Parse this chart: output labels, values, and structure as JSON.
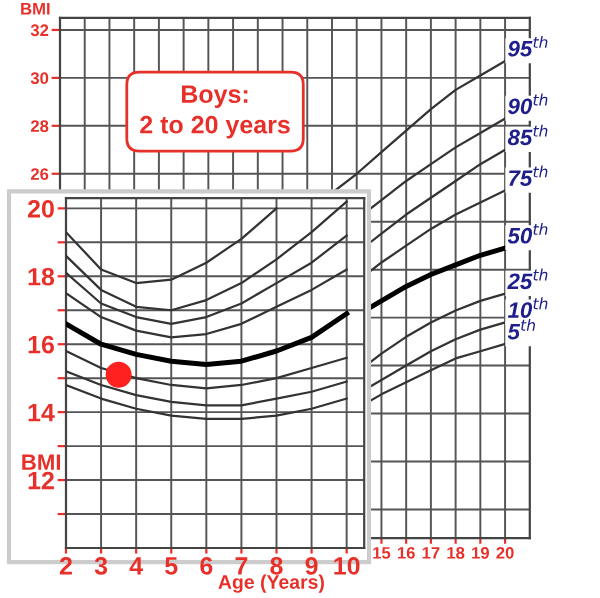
{
  "chart_data": [
    {
      "type": "line",
      "title": "Boys:\n2 to 20 years",
      "xlabel": "Age (Years)",
      "ylabel": "BMI",
      "xlim": [
        2,
        21
      ],
      "ylim": [
        10.8,
        32.5
      ],
      "xticks": [
        {
          "value": 2,
          "label": null
        },
        {
          "value": 3,
          "label": null
        },
        {
          "value": 4,
          "label": null
        },
        {
          "value": 5,
          "label": null
        },
        {
          "value": 6,
          "label": null
        },
        {
          "value": 7,
          "label": null
        },
        {
          "value": 8,
          "label": null
        },
        {
          "value": 9,
          "label": null
        },
        {
          "value": 10,
          "label": null
        },
        {
          "value": 11,
          "label": null
        },
        {
          "value": 12,
          "label": null
        },
        {
          "value": 13,
          "label": null
        },
        {
          "value": 14,
          "label": null
        },
        15,
        16,
        17,
        18,
        19,
        20
      ],
      "yticks": [
        {
          "value": 12,
          "label": null
        },
        {
          "value": 14,
          "label": null
        },
        {
          "value": 16,
          "label": null
        },
        {
          "value": 18,
          "label": null
        },
        {
          "value": 20,
          "label": null
        },
        {
          "value": 22,
          "label": null
        },
        {
          "value": 24,
          "label": null
        },
        26,
        28,
        30,
        32
      ],
      "grid": true,
      "legend": false,
      "marker": "none",
      "series": [
        {
          "name": "95$^{th}$",
          "color": "#333333",
          "x": [
            13,
            14,
            15,
            16,
            17,
            18,
            19,
            20
          ],
          "values": [
            25.2,
            26.0,
            26.9,
            27.8,
            28.7,
            29.5,
            30.1,
            30.7
          ]
        },
        {
          "name": "90$^{th}$",
          "color": "#333333",
          "x": [
            14.5,
            15,
            16,
            17,
            18,
            19,
            20
          ],
          "values": [
            24.5,
            24.9,
            25.7,
            26.4,
            27.1,
            27.7,
            28.3
          ]
        },
        {
          "name": "85$^{th}$",
          "color": "#333333",
          "x": [
            14.5,
            15,
            16,
            17,
            18,
            19,
            20
          ],
          "values": [
            23.1,
            23.5,
            24.3,
            25.0,
            25.7,
            26.4,
            27.0
          ]
        },
        {
          "name": "75$^{th}$",
          "color": "#333333",
          "x": [
            14.5,
            15,
            16,
            17,
            18,
            19,
            20
          ],
          "values": [
            21.9,
            22.3,
            23.0,
            23.7,
            24.3,
            24.8,
            25.3
          ]
        },
        {
          "name": "50$^{th}$",
          "color": "#000000",
          "x": [
            14.5,
            15,
            16,
            17,
            18,
            19,
            20
          ],
          "values": [
            20.4,
            20.7,
            21.3,
            21.8,
            22.2,
            22.6,
            22.9
          ]
        },
        {
          "name": "25$^{th}$",
          "color": "#333333",
          "x": [
            14.5,
            15,
            16,
            17,
            18,
            19,
            20
          ],
          "values": [
            18.1,
            18.5,
            19.2,
            19.8,
            20.3,
            20.7,
            21.0
          ]
        },
        {
          "name": "10$^{th}$",
          "color": "#333333",
          "x": [
            14.5,
            15,
            16,
            17,
            18,
            19,
            20
          ],
          "values": [
            17.1,
            17.4,
            18.0,
            18.6,
            19.1,
            19.5,
            19.8
          ]
        },
        {
          "name": "5$^{th}$",
          "color": "#333333",
          "x": [
            14.5,
            15,
            16,
            17,
            18,
            19,
            20
          ],
          "values": [
            16.5,
            16.8,
            17.3,
            17.8,
            18.3,
            18.6,
            18.9
          ]
        }
      ]
    },
    {
      "type": "line",
      "ylabel": "BMI",
      "xlim": [
        2,
        10.5
      ],
      "ylim": [
        10,
        20.3
      ],
      "xticks": [
        2,
        3,
        4,
        5,
        6,
        7,
        8,
        9,
        10
      ],
      "yticks": [
        {
          "value": 11,
          "label": null
        },
        12,
        {
          "value": 13,
          "label": null
        },
        14,
        {
          "value": 15,
          "label": null
        },
        16,
        {
          "value": 17,
          "label": null
        },
        18,
        {
          "value": 19,
          "label": null
        },
        20
      ],
      "grid": true,
      "legend": false,
      "marker": "none",
      "series": [
        {
          "color": "#333333",
          "x": [
            2,
            3,
            4,
            5,
            6,
            7,
            8
          ],
          "values": [
            19.3,
            18.2,
            17.8,
            17.9,
            18.4,
            19.1,
            20.0
          ]
        },
        {
          "color": "#333333",
          "x": [
            2,
            3,
            4,
            5,
            6,
            7,
            8,
            9,
            10
          ],
          "values": [
            18.6,
            17.6,
            17.1,
            17.0,
            17.3,
            17.8,
            18.5,
            19.3,
            20.2
          ]
        },
        {
          "color": "#333333",
          "x": [
            2,
            3,
            4,
            5,
            6,
            7,
            8,
            9,
            10
          ],
          "values": [
            18.1,
            17.2,
            16.8,
            16.6,
            16.8,
            17.2,
            17.8,
            18.4,
            19.2
          ]
        },
        {
          "color": "#333333",
          "x": [
            2,
            3,
            4,
            5,
            6,
            7,
            8,
            9,
            10
          ],
          "values": [
            17.5,
            16.8,
            16.4,
            16.2,
            16.3,
            16.6,
            17.1,
            17.6,
            18.2
          ]
        },
        {
          "color": "#000000",
          "x": [
            2,
            3,
            4,
            5,
            6,
            7,
            8,
            9,
            10
          ],
          "values": [
            16.6,
            16.0,
            15.7,
            15.5,
            15.4,
            15.5,
            15.8,
            16.2,
            16.9
          ]
        },
        {
          "color": "#333333",
          "x": [
            2,
            3,
            4,
            5,
            6,
            7,
            8,
            9,
            10
          ],
          "values": [
            15.8,
            15.3,
            15.0,
            14.8,
            14.7,
            14.8,
            15.0,
            15.3,
            15.6
          ]
        },
        {
          "color": "#333333",
          "x": [
            2,
            3,
            4,
            5,
            6,
            7,
            8,
            9,
            10
          ],
          "values": [
            15.2,
            14.8,
            14.5,
            14.3,
            14.2,
            14.2,
            14.4,
            14.6,
            14.9
          ]
        },
        {
          "color": "#333333",
          "x": [
            2,
            3,
            4,
            5,
            6,
            7,
            8,
            9,
            10
          ],
          "values": [
            14.8,
            14.4,
            14.1,
            13.9,
            13.8,
            13.8,
            13.9,
            14.1,
            14.4
          ]
        },
        {
          "type": "scatter",
          "marker": "circle",
          "color": "#ff2020",
          "x": [
            3.5
          ],
          "values": [
            15.1
          ]
        }
      ]
    }
  ]
}
